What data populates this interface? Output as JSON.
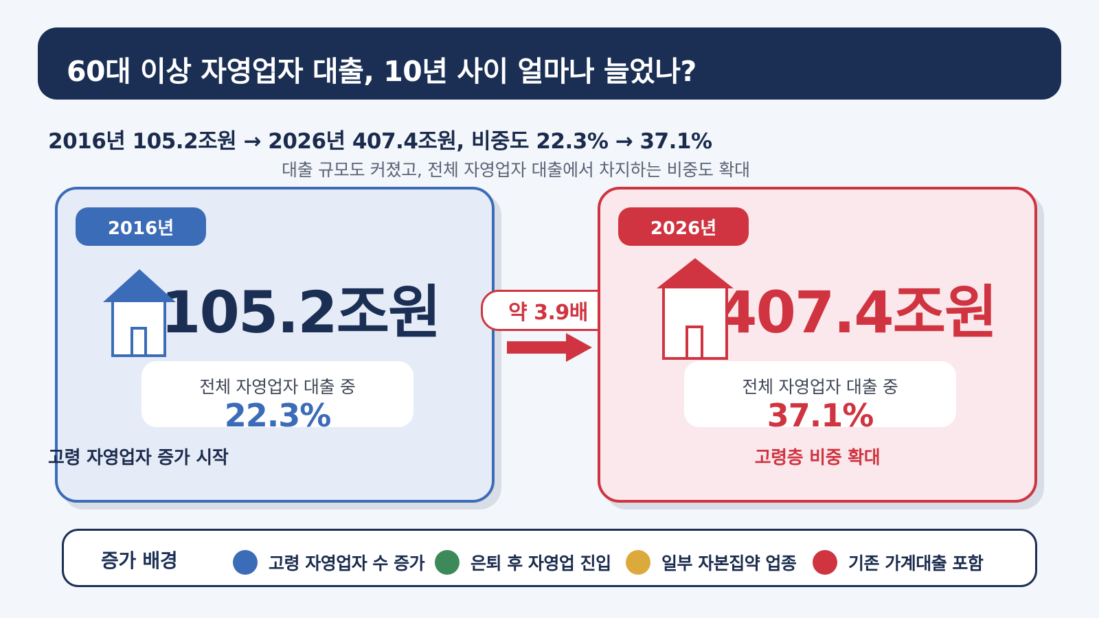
{
  "header": {
    "title": "60대 이상 자영업자 대출, 10년 사이 얼마나 늘었나?",
    "summary": "2016년 105.2조원 → 2026년 407.4조원, 비중도 22.3% → 37.1%",
    "subtitle": "대출 규모도 커졌고, 전체 자영업자 대출에서 차지하는 비중도 확대"
  },
  "panels": {
    "before": {
      "year": "2016년",
      "amount": "105.2조원",
      "share_label": "전체 자영업자 대출 중",
      "share_value": "22.3%",
      "note": "고령 자영업자 증가 시작",
      "accent": "#3b6cb7",
      "icon": "house-icon"
    },
    "after": {
      "year": "2026년",
      "amount": "407.4조원",
      "share_label": "전체 자영업자 대출 중",
      "share_value": "37.1%",
      "note": "고령층 비중 확대",
      "accent": "#cf3440",
      "icon": "house-icon"
    }
  },
  "multiplier": {
    "label": "약 3.9배",
    "icon": "right-arrow-icon"
  },
  "background": {
    "title": "증가 배경",
    "items": [
      {
        "label": "고령 자영업자 수 증가",
        "color": "#3b6cb7"
      },
      {
        "label": "은퇴 후 자영업 진입",
        "color": "#3c8a5a"
      },
      {
        "label": "일부 자본집약 업종",
        "color": "#dcaa3c"
      },
      {
        "label": "기존 가계대출 포함",
        "color": "#cf3440"
      }
    ]
  }
}
